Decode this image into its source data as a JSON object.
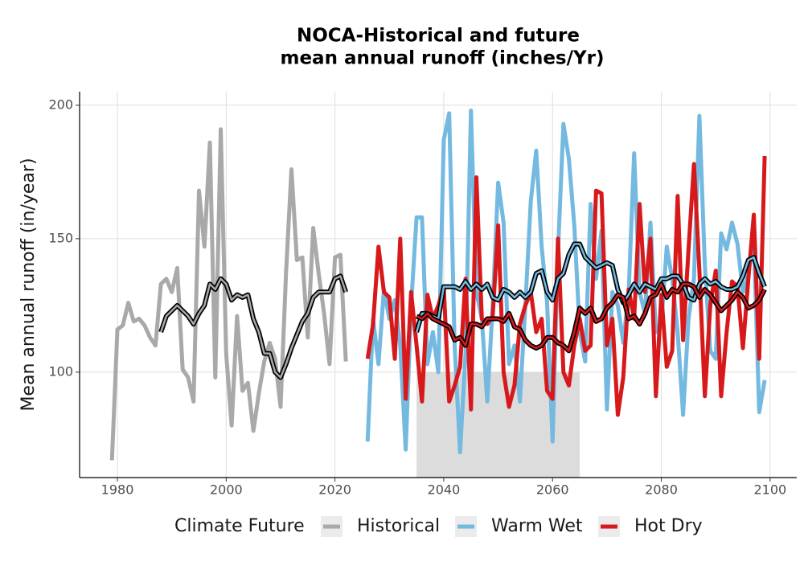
{
  "chart_data": {
    "type": "line",
    "title": [
      "NOCA-Historical and future",
      "mean annual runoff (inches/Yr)"
    ],
    "y_label": "Mean annual runoff (in/year)",
    "legend_title": "Climate Future",
    "xlim": [
      1973.05,
      2104.9
    ],
    "ylim": [
      60.5,
      205.1
    ],
    "xticks": [
      1980,
      2000,
      2020,
      2040,
      2060,
      2080,
      2100
    ],
    "yticks": [
      100,
      150,
      200
    ],
    "grid": true,
    "legend_position": "bottom",
    "highlight": {
      "x": [
        2035,
        2065
      ],
      "y": [
        60.5,
        100
      ],
      "color": "#dcdcdc"
    },
    "series": [
      {
        "name": "Historical",
        "color": "#a9a9a9",
        "x": [
          1979,
          1980,
          1981,
          1982,
          1983,
          1984,
          1985,
          1986,
          1987,
          1988,
          1989,
          1990,
          1991,
          1992,
          1993,
          1994,
          1995,
          1996,
          1997,
          1998,
          1999,
          2000,
          2001,
          2002,
          2003,
          2004,
          2005,
          2006,
          2007,
          2008,
          2009,
          2010,
          2011,
          2012,
          2013,
          2014,
          2015,
          2016,
          2017,
          2018,
          2019,
          2020,
          2021,
          2022
        ],
        "values": [
          67,
          116,
          117.5,
          126,
          119,
          120,
          117.5,
          113,
          110,
          133,
          135,
          130,
          139,
          101,
          98,
          89,
          168,
          147,
          186,
          98,
          191,
          107,
          80,
          121,
          93,
          96,
          78,
          92,
          104,
          111,
          105,
          87,
          137,
          176,
          142,
          143,
          113,
          154,
          137,
          122,
          103,
          143,
          144,
          104
        ],
        "smoothed": [
          null,
          null,
          null,
          null,
          null,
          null,
          null,
          null,
          null,
          115,
          121,
          123,
          125,
          123,
          121,
          118,
          122,
          125,
          133,
          131,
          135,
          133,
          127,
          129,
          128,
          129,
          120,
          115,
          107,
          107,
          100,
          98,
          103,
          109,
          114,
          119,
          122,
          128,
          130,
          130,
          130,
          135,
          136,
          130
        ]
      },
      {
        "name": "Warm Wet",
        "color": "#74b9e0",
        "x": [
          2026,
          2027,
          2028,
          2029,
          2030,
          2031,
          2032,
          2033,
          2034,
          2035,
          2036,
          2037,
          2038,
          2039,
          2040,
          2041,
          2042,
          2043,
          2044,
          2045,
          2046,
          2047,
          2048,
          2049,
          2050,
          2051,
          2052,
          2053,
          2054,
          2055,
          2056,
          2057,
          2058,
          2059,
          2060,
          2061,
          2062,
          2063,
          2064,
          2065,
          2066,
          2067,
          2068,
          2069,
          2070,
          2071,
          2072,
          2073,
          2074,
          2075,
          2076,
          2077,
          2078,
          2079,
          2080,
          2081,
          2082,
          2083,
          2084,
          2085,
          2086,
          2087,
          2088,
          2089,
          2090,
          2091,
          2092,
          2093,
          2094,
          2095,
          2096,
          2097,
          2098,
          2099
        ],
        "values": [
          74,
          120,
          103,
          131,
          120,
          127,
          110,
          71,
          125,
          158,
          158,
          103,
          115,
          100,
          187,
          197,
          110,
          70,
          107,
          198,
          130,
          120,
          89,
          125,
          171,
          156,
          103,
          110,
          89,
          125,
          164,
          183,
          147,
          126,
          74,
          145,
          193,
          180,
          155,
          115,
          104,
          163,
          135,
          153,
          86,
          130,
          125,
          111,
          130,
          182,
          130,
          122,
          156,
          115,
          118,
          147,
          135,
          115,
          84,
          120,
          135,
          196,
          140,
          108,
          105,
          152,
          146,
          156,
          148,
          130,
          137,
          150,
          85,
          97
        ],
        "smoothed": [
          null,
          null,
          null,
          null,
          null,
          null,
          null,
          null,
          null,
          115,
          122,
          122,
          121,
          120,
          132,
          132,
          132,
          131,
          134,
          131,
          133,
          131,
          133,
          128,
          127,
          131,
          130,
          128,
          130,
          128,
          130,
          137,
          138,
          130,
          127,
          135,
          137,
          144,
          148,
          148,
          143,
          141,
          139,
          140,
          141,
          140,
          131,
          126,
          129,
          133,
          130,
          133,
          132,
          131,
          135,
          135,
          136,
          136,
          133,
          128,
          127,
          133,
          135,
          133,
          134,
          132,
          131,
          131,
          132,
          136,
          142,
          143,
          137,
          132
        ]
      },
      {
        "name": "Hot Dry",
        "color": "#d7191c",
        "x": [
          2026,
          2027,
          2028,
          2029,
          2030,
          2031,
          2032,
          2033,
          2034,
          2035,
          2036,
          2037,
          2038,
          2039,
          2040,
          2041,
          2042,
          2043,
          2044,
          2045,
          2046,
          2047,
          2048,
          2049,
          2050,
          2051,
          2052,
          2053,
          2054,
          2055,
          2056,
          2057,
          2058,
          2059,
          2060,
          2061,
          2062,
          2063,
          2064,
          2065,
          2066,
          2067,
          2068,
          2069,
          2070,
          2071,
          2072,
          2073,
          2074,
          2075,
          2076,
          2077,
          2078,
          2079,
          2080,
          2081,
          2082,
          2083,
          2084,
          2085,
          2086,
          2087,
          2088,
          2089,
          2090,
          2091,
          2092,
          2093,
          2094,
          2095,
          2096,
          2097,
          2098,
          2099
        ],
        "values": [
          105,
          118,
          147,
          130,
          128,
          105,
          150,
          90,
          130,
          110,
          89,
          129,
          120,
          125,
          132,
          89,
          95,
          102,
          135,
          86,
          173,
          120,
          118,
          121,
          155,
          100,
          87,
          95,
          118,
          125,
          130,
          115,
          120,
          93,
          90,
          150,
          100,
          95,
          110,
          120,
          108,
          110,
          168,
          167,
          110,
          120,
          84,
          98,
          131,
          120,
          163,
          130,
          150,
          91,
          129,
          102,
          108,
          166,
          112,
          146,
          178,
          138,
          91,
          125,
          138,
          91,
          115,
          134,
          132,
          109,
          135,
          159,
          105,
          181
        ],
        "smoothed": [
          null,
          null,
          null,
          null,
          null,
          null,
          null,
          null,
          null,
          121,
          120,
          122,
          120,
          119,
          118,
          117,
          112,
          113,
          110,
          118,
          118,
          117,
          120,
          120,
          120,
          119,
          122,
          117,
          116,
          112,
          110,
          109,
          110,
          113,
          113,
          111,
          110,
          108,
          115,
          124,
          122,
          124,
          119,
          120,
          124,
          126,
          129,
          128,
          120,
          121,
          118,
          122,
          128,
          129,
          133,
          128,
          131,
          130,
          133,
          133,
          132,
          128,
          131,
          129,
          126,
          123,
          125,
          127,
          130,
          128,
          124,
          125,
          127,
          131
        ]
      }
    ]
  }
}
